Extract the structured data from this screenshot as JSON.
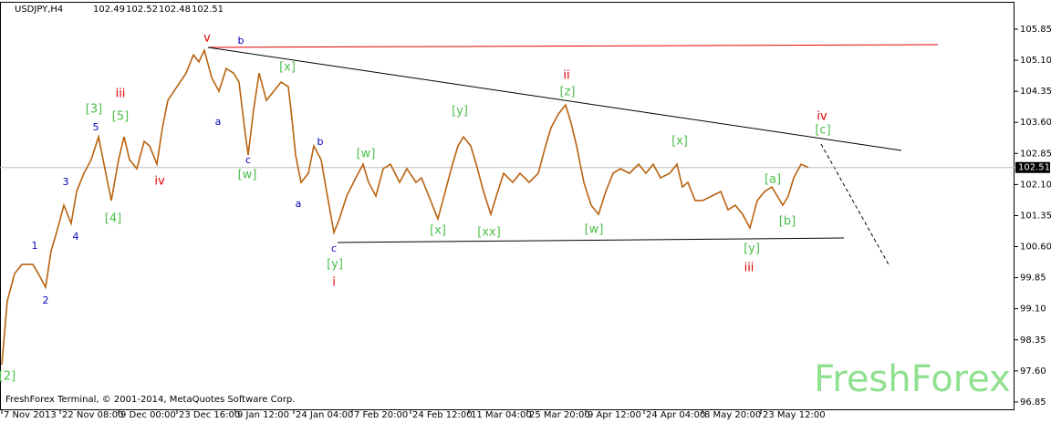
{
  "chart_data": {
    "type": "line",
    "title": "USDJPY,H4",
    "ohlc": [
      102.49,
      102.52,
      102.48,
      102.51
    ],
    "footer": "FreshForex Terminal, © 2001-2014, MetaQuotes Software Corp.",
    "watermark": "FreshForex",
    "last_price": 102.51,
    "color": "#b8620e",
    "x": [
      1,
      4,
      8,
      12,
      18,
      21,
      25,
      28,
      31,
      35,
      39,
      42,
      46,
      50,
      54,
      58,
      61,
      65,
      68,
      71,
      75,
      79,
      82,
      86,
      89,
      92,
      97,
      102,
      106,
      109,
      112,
      116,
      120,
      124,
      128,
      131,
      134,
      136,
      139,
      142,
      146,
      150,
      154,
      158,
      160,
      162,
      165,
      169,
      172,
      176,
      179,
      183,
      186,
      190,
      195,
      199,
      202,
      206,
      210,
      214,
      219,
      223,
      228,
      231,
      235,
      240,
      244,
      248,
      251,
      254,
      258,
      261,
      265,
      269,
      272,
      276,
      281,
      285,
      290,
      295,
      299,
      302,
      306,
      310,
      313,
      316,
      320,
      324,
      328,
      332,
      336,
      340,
      345,
      350,
      354,
      358,
      362,
      367,
      371,
      374,
      377,
      381,
      385,
      390,
      395,
      399,
      403,
      407,
      411,
      415,
      419,
      423,
      426,
      429,
      432,
      435,
      439,
      443
    ],
    "values": [
      97.75,
      99.29,
      99.95,
      100.17,
      100.17,
      99.95,
      99.62,
      100.5,
      100.94,
      101.6,
      101.16,
      101.93,
      102.37,
      102.7,
      103.25,
      102.37,
      101.71,
      102.7,
      103.25,
      102.7,
      102.48,
      103.14,
      103.03,
      102.59,
      103.47,
      104.13,
      104.46,
      104.79,
      105.23,
      105.06,
      105.34,
      104.68,
      104.35,
      104.9,
      104.79,
      104.57,
      103.47,
      102.81,
      103.91,
      104.79,
      104.13,
      104.35,
      104.57,
      104.46,
      103.69,
      102.81,
      102.15,
      102.37,
      103.03,
      102.7,
      101.93,
      100.94,
      101.27,
      101.82,
      102.26,
      102.59,
      102.15,
      101.82,
      102.48,
      102.59,
      102.15,
      102.48,
      102.15,
      102.26,
      101.82,
      101.27,
      101.93,
      102.59,
      103.03,
      103.25,
      103.03,
      102.59,
      101.93,
      101.38,
      101.82,
      102.37,
      102.15,
      102.37,
      102.15,
      102.37,
      103.03,
      103.47,
      103.8,
      104.02,
      103.58,
      103.03,
      102.15,
      101.6,
      101.38,
      101.93,
      102.37,
      102.48,
      102.37,
      102.59,
      102.37,
      102.59,
      102.26,
      102.37,
      102.59,
      102.04,
      102.15,
      101.71,
      101.71,
      101.82,
      101.93,
      101.49,
      101.6,
      101.38,
      101.05,
      101.71,
      101.93,
      102.04,
      101.82,
      101.6,
      101.82,
      102.26,
      102.59,
      102.51
    ],
    "xlim": [
      0,
      556
    ],
    "xticks": [
      {
        "value": 1,
        "label": "7 Nov 2013"
      },
      {
        "value": 33,
        "label": "22 Nov 08:00"
      },
      {
        "value": 65,
        "label": "9 Dec 00:00"
      },
      {
        "value": 97,
        "label": "23 Dec 16:00"
      },
      {
        "value": 129,
        "label": "9 Jan 12:00"
      },
      {
        "value": 161,
        "label": "24 Jan 04:00"
      },
      {
        "value": 193,
        "label": "7 Feb 20:00"
      },
      {
        "value": 225,
        "label": "24 Feb 12:00"
      },
      {
        "value": 257,
        "label": "11 Mar 04:00"
      },
      {
        "value": 289,
        "label": "25 Mar 20:00"
      },
      {
        "value": 321,
        "label": "9 Apr 12:00"
      },
      {
        "value": 353,
        "label": "24 Apr 04:00"
      },
      {
        "value": 385,
        "label": "8 May 20:00"
      },
      {
        "value": 417,
        "label": "23 May 12:00"
      }
    ],
    "ylim": [
      96.65,
      106.51
    ],
    "yticks": [
      96.85,
      {
        "value": 97.6,
        "label": "97.60"
      },
      98.35,
      {
        "value": 99.1,
        "label": "99.10"
      },
      99.85,
      {
        "value": 100.6,
        "label": "100.60"
      },
      101.35,
      {
        "value": 102.1,
        "label": "102.10"
      },
      102.85,
      {
        "value": 103.6,
        "label": "103.60"
      },
      104.35,
      {
        "value": 105.1,
        "label": "105.10"
      },
      105.85
    ],
    "annotations": [
      {
        "text": "v",
        "color": "#e00000"
      },
      {
        "text": "b",
        "color": "#0000c0"
      },
      {
        "text": "[x]",
        "color": "#4cbf4c"
      },
      {
        "text": "ii",
        "color": "#e00000"
      },
      {
        "text": "[z]",
        "color": "#4cbf4c"
      },
      {
        "text": "iii",
        "color": "#e00000"
      },
      {
        "text": "[3]",
        "color": "#4cbf4c"
      },
      {
        "text": "[5]",
        "color": "#4cbf4c"
      },
      {
        "text": "5",
        "color": "#0000c0"
      },
      {
        "text": "a",
        "color": "#0000c0"
      },
      {
        "text": "iv",
        "color": "#e00000"
      },
      {
        "text": "[c]",
        "color": "#4cbf4c"
      },
      {
        "text": "[y]",
        "color": "#4cbf4c"
      },
      {
        "text": "[x]",
        "color": "#4cbf4c"
      },
      {
        "text": "b",
        "color": "#0000c0"
      },
      {
        "text": "c",
        "color": "#0000c0"
      },
      {
        "text": "[w]",
        "color": "#4cbf4c"
      },
      {
        "text": "[w]",
        "color": "#4cbf4c"
      },
      {
        "text": "iv",
        "color": "#e00000"
      },
      {
        "text": "3",
        "color": "#0000c0"
      },
      {
        "text": "[a]",
        "color": "#4cbf4c"
      },
      {
        "text": "a",
        "color": "#0000c0"
      },
      {
        "text": "[4]",
        "color": "#4cbf4c"
      },
      {
        "text": "[b]",
        "color": "#4cbf4c"
      },
      {
        "text": "[x]",
        "color": "#4cbf4c"
      },
      {
        "text": "[xx]",
        "color": "#4cbf4c"
      },
      {
        "text": "[w]",
        "color": "#4cbf4c"
      },
      {
        "text": "4",
        "color": "#0000c0"
      },
      {
        "text": "1",
        "color": "#0000c0"
      },
      {
        "text": "c",
        "color": "#0000c0"
      },
      {
        "text": "[y]",
        "color": "#4cbf4c"
      },
      {
        "text": "[y]",
        "color": "#4cbf4c"
      },
      {
        "text": "iii",
        "color": "#e00000"
      },
      {
        "text": "2",
        "color": "#0000c0"
      },
      {
        "text": "i",
        "color": "#e00000"
      },
      {
        "text": "[2]",
        "color": "#4cbf4c"
      }
    ]
  }
}
